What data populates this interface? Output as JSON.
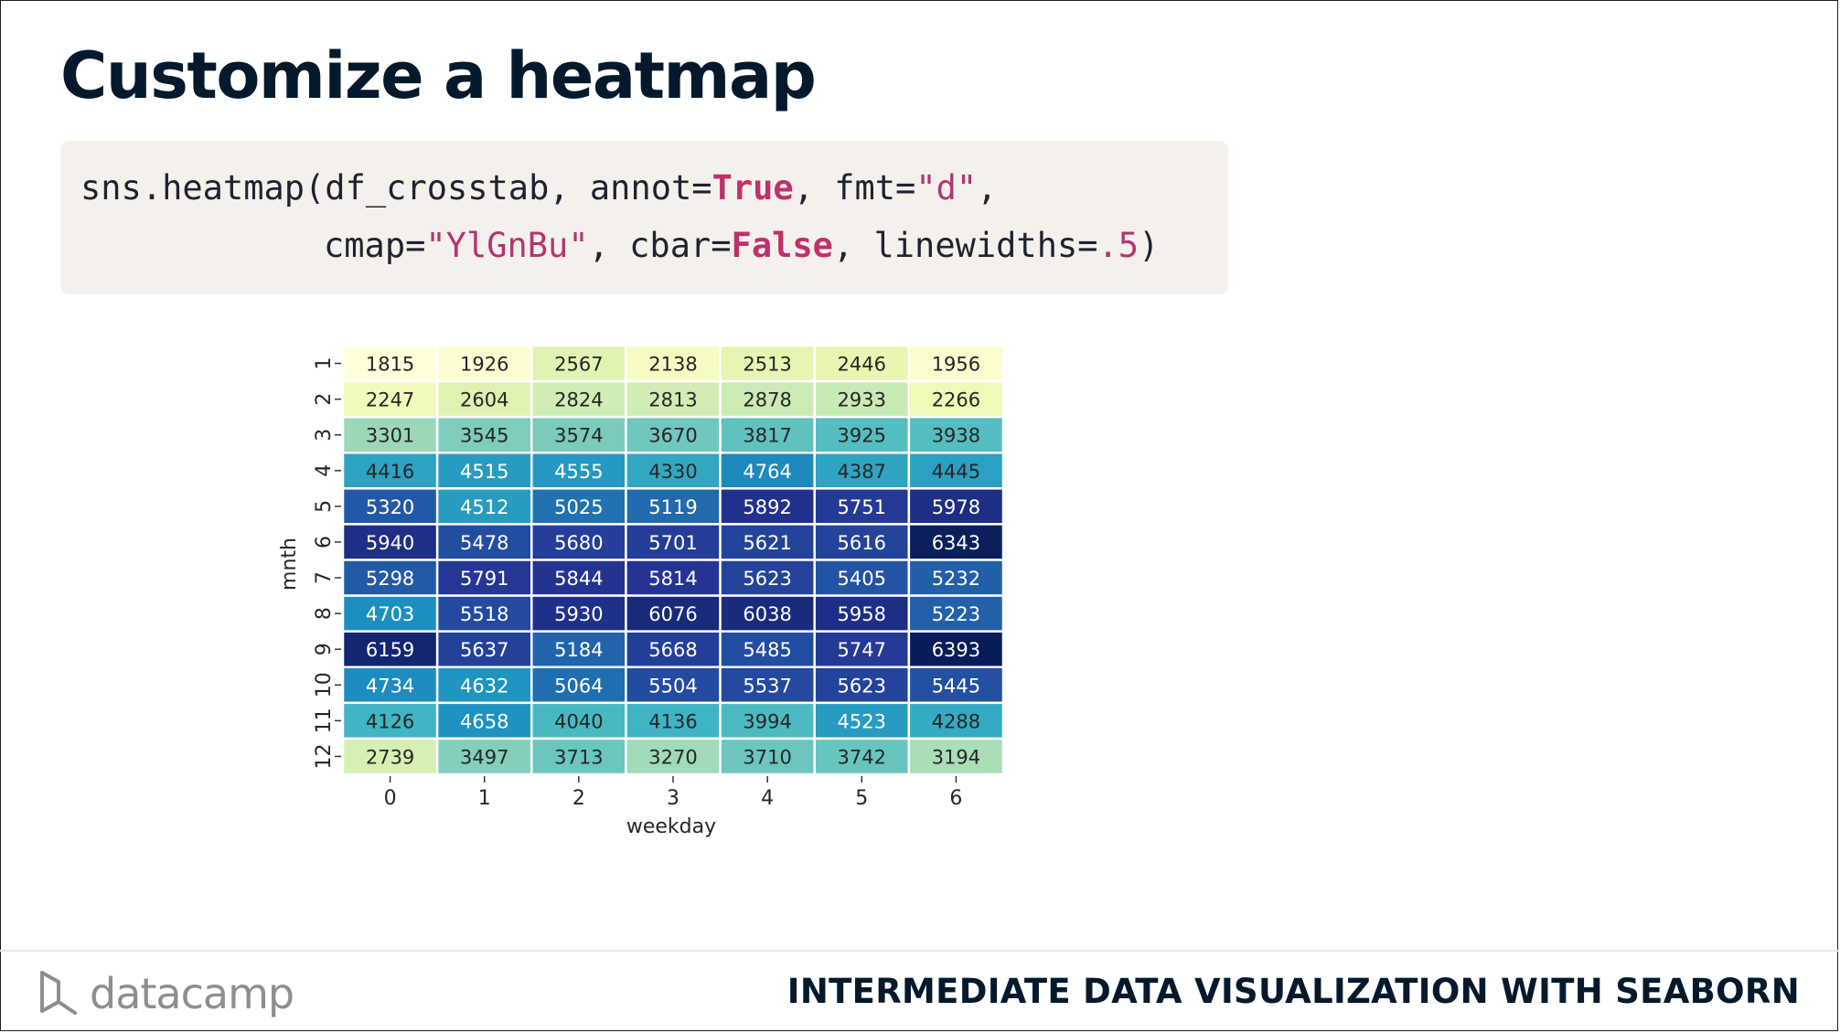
{
  "slide": {
    "title": "Customize a heatmap",
    "course_title": "INTERMEDIATE DATA VISUALIZATION WITH SEABORN",
    "brand": "datacamp"
  },
  "code": {
    "l1_a": "sns.heatmap(df_crosstab, annot=",
    "l1_b": "True",
    "l1_c": ", fmt=",
    "l1_d": "\"d\"",
    "l1_e": ",",
    "l2_a": "cmap=",
    "l2_b": "\"YlGnBu\"",
    "l2_c": ", cbar=",
    "l2_d": "False",
    "l2_e": ", linewidths=",
    "l2_f": ".5",
    "l2_g": ")"
  },
  "chart_data": {
    "type": "heatmap",
    "xlabel": "weekday",
    "ylabel": "mnth",
    "x_categories": [
      "0",
      "1",
      "2",
      "3",
      "4",
      "5",
      "6"
    ],
    "y_categories": [
      "1",
      "2",
      "3",
      "4",
      "5",
      "6",
      "7",
      "8",
      "9",
      "10",
      "11",
      "12"
    ],
    "values": [
      [
        1815,
        1926,
        2567,
        2138,
        2513,
        2446,
        1956
      ],
      [
        2247,
        2604,
        2824,
        2813,
        2878,
        2933,
        2266
      ],
      [
        3301,
        3545,
        3574,
        3670,
        3817,
        3925,
        3938
      ],
      [
        4416,
        4515,
        4555,
        4330,
        4764,
        4387,
        4445
      ],
      [
        5320,
        4512,
        5025,
        5119,
        5892,
        5751,
        5978
      ],
      [
        5940,
        5478,
        5680,
        5701,
        5621,
        5616,
        6343
      ],
      [
        5298,
        5791,
        5844,
        5814,
        5623,
        5405,
        5232
      ],
      [
        4703,
        5518,
        5930,
        6076,
        6038,
        5958,
        5223
      ],
      [
        6159,
        5637,
        5184,
        5668,
        5485,
        5747,
        6393
      ],
      [
        4734,
        4632,
        5064,
        5504,
        5537,
        5623,
        5445
      ],
      [
        4126,
        4658,
        4040,
        4136,
        3994,
        4523,
        4288
      ],
      [
        2739,
        3497,
        3713,
        3270,
        3710,
        3742,
        3194
      ]
    ],
    "colormap": "YlGnBu",
    "annotate": true,
    "colorbar": false
  }
}
